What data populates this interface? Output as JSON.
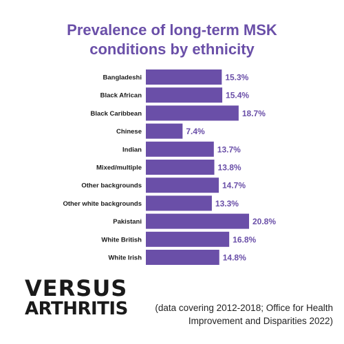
{
  "title_line1": "Prevalence of long-term MSK",
  "title_line2": "conditions by ethnicity",
  "logo": {
    "line1": "VERSUS",
    "line2": "ARTHRITIS"
  },
  "source": {
    "line1": "(data covering 2012-2018; Office for Health",
    "line2": "Improvement and Disparities 2022)"
  },
  "colors": {
    "bar": "#6a4fa8",
    "value_label": "#6a4fa8",
    "title": "#6a4fa8"
  },
  "chart_data": {
    "type": "bar",
    "orientation": "horizontal",
    "title": "Prevalence of long-term MSK conditions by ethnicity",
    "categories": [
      "Bangladeshi",
      "Black African",
      "Black Caribbean",
      "Chinese",
      "Indian",
      "Mixed/multiple",
      "Other backgrounds",
      "Other white backgrounds",
      "Pakistani",
      "White British",
      "White Irish"
    ],
    "values": [
      15.3,
      15.4,
      18.7,
      7.4,
      13.7,
      13.8,
      14.7,
      13.3,
      20.8,
      16.8,
      14.8
    ],
    "value_labels": [
      "15.3%",
      "15.4%",
      "18.7%",
      "7.4%",
      "13.7%",
      "13.8%",
      "14.7%",
      "13.3%",
      "20.8%",
      "16.8%",
      "14.8%"
    ],
    "xlabel": "",
    "ylabel": "",
    "xlim": [
      0,
      20.8
    ],
    "grid": false,
    "legend": "none"
  }
}
